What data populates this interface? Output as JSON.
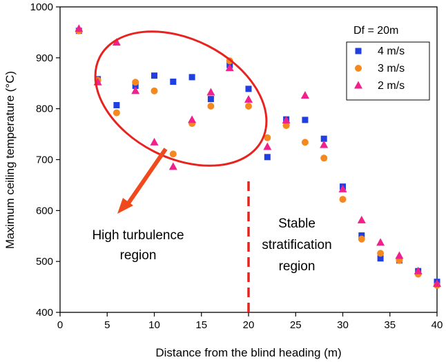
{
  "chart_data": {
    "type": "scatter",
    "title": "",
    "xlabel": "Distance from the blind heading (m)",
    "ylabel": "Maximum ceiling temperature (°C)",
    "xlim": [
      0,
      40
    ],
    "ylim": [
      400,
      1000
    ],
    "xticks": [
      0,
      5,
      10,
      15,
      20,
      25,
      30,
      35,
      40
    ],
    "yticks": [
      400,
      500,
      600,
      700,
      800,
      900,
      1000
    ],
    "grid": false,
    "legend": {
      "title": "Df = 20m",
      "position": "top-right"
    },
    "series": [
      {
        "name": "4 m/s",
        "marker": "square",
        "color": "#1f3fe0",
        "x": [
          2,
          4,
          6,
          8,
          10,
          12,
          14,
          16,
          18,
          20,
          22,
          24,
          26,
          28,
          30,
          32,
          34,
          36,
          38,
          40
        ],
        "y": [
          953,
          858,
          807,
          845,
          865,
          853,
          862,
          819,
          886,
          839,
          705,
          779,
          778,
          741,
          647,
          551,
          506,
          502,
          481,
          460
        ]
      },
      {
        "name": "3 m/s",
        "marker": "circle",
        "color": "#f5891f",
        "x": [
          2,
          4,
          6,
          8,
          10,
          12,
          14,
          16,
          18,
          20,
          22,
          24,
          26,
          28,
          30,
          32,
          34,
          36,
          38,
          40
        ],
        "y": [
          953,
          856,
          792,
          852,
          835,
          711,
          771,
          805,
          894,
          805,
          743,
          767,
          734,
          703,
          622,
          544,
          516,
          502,
          475,
          453
        ]
      },
      {
        "name": "2 m/s",
        "marker": "triangle",
        "color": "#f0208c",
        "x": [
          2,
          4,
          6,
          8,
          10,
          12,
          14,
          16,
          18,
          20,
          22,
          24,
          26,
          28,
          30,
          32,
          34,
          36,
          38,
          40
        ],
        "y": [
          957,
          852,
          930,
          835,
          734,
          686,
          778,
          832,
          880,
          818,
          725,
          777,
          826,
          729,
          642,
          581,
          537,
          511,
          481,
          456
        ]
      }
    ],
    "annotations": {
      "turbulence": [
        "High turbulence",
        "region"
      ],
      "stratification": [
        "Stable",
        "stratification",
        "region"
      ],
      "divider_x": 20
    },
    "colors": {
      "annotation": "#e8231f",
      "arrow": "#f04a1c"
    }
  }
}
